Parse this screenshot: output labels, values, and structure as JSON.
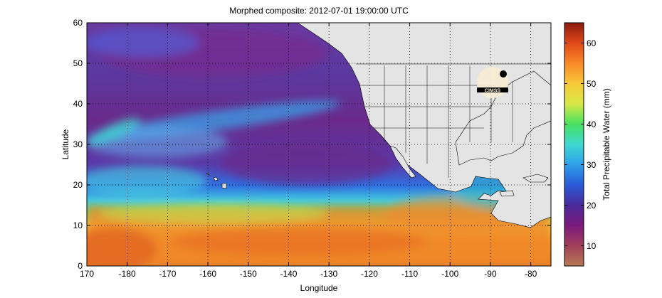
{
  "title": "Morphed composite: 2012-07-01 19:00:00 UTC",
  "x_axis": {
    "label": "Longitude",
    "ticks": [
      "170",
      "-180",
      "-170",
      "-160",
      "-150",
      "-140",
      "-130",
      "-120",
      "-110",
      "-100",
      "-90",
      "-80"
    ]
  },
  "y_axis": {
    "label": "Latitude",
    "ticks": [
      "0",
      "10",
      "20",
      "30",
      "40",
      "50",
      "60"
    ]
  },
  "colorbar": {
    "label": "Total Precipitable Water (mm)",
    "ticks": [
      "10",
      "20",
      "30",
      "40",
      "50",
      "60"
    ],
    "range": [
      5,
      65
    ],
    "colors": [
      "#b67a55",
      "#a0405a",
      "#7a1a7a",
      "#4a2a9a",
      "#2a5ad8",
      "#2ea0ea",
      "#3ed8d0",
      "#48e060",
      "#d8e848",
      "#f8c838",
      "#f88a28",
      "#e04818",
      "#8a1a10"
    ]
  },
  "logo": {
    "text": "CIMSS"
  },
  "map": {
    "lon_range": [
      170,
      285
    ],
    "lat_range": [
      0,
      60
    ],
    "land_color": "#e4e4e4",
    "grid": "dotted"
  }
}
